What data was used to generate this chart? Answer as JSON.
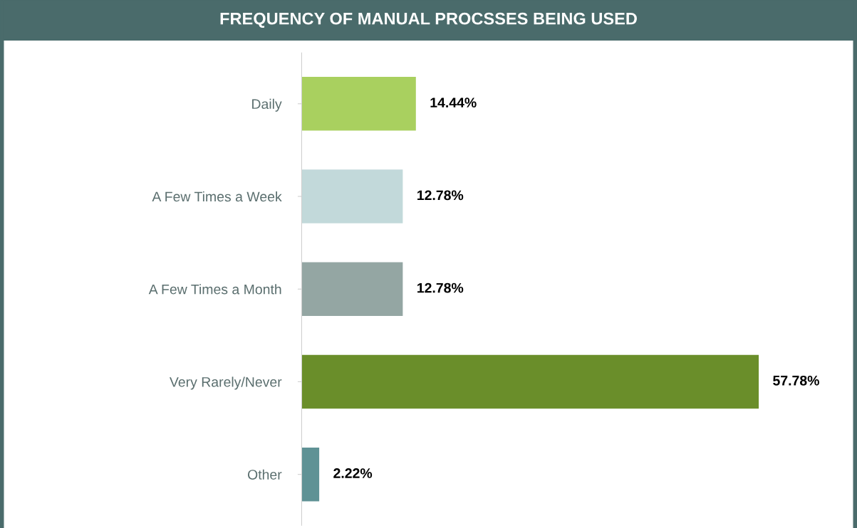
{
  "chart_data": {
    "type": "bar",
    "orientation": "horizontal",
    "title": "FREQUENCY OF MANUAL PROCSSES BEING USED",
    "categories": [
      "Daily",
      "A Few Times a Week",
      "A Few Times a Month",
      "Very Rarely/Never",
      "Other"
    ],
    "values": [
      14.44,
      12.78,
      12.78,
      57.78,
      2.22
    ],
    "colors": [
      "#a9d05f",
      "#c2d9da",
      "#94a6a3",
      "#6a8e2a",
      "#5f9295"
    ],
    "value_labels": [
      "14.44%",
      "12.78%",
      "12.78%",
      "57.78%",
      "2.22%"
    ],
    "grid": false,
    "legend": false
  }
}
